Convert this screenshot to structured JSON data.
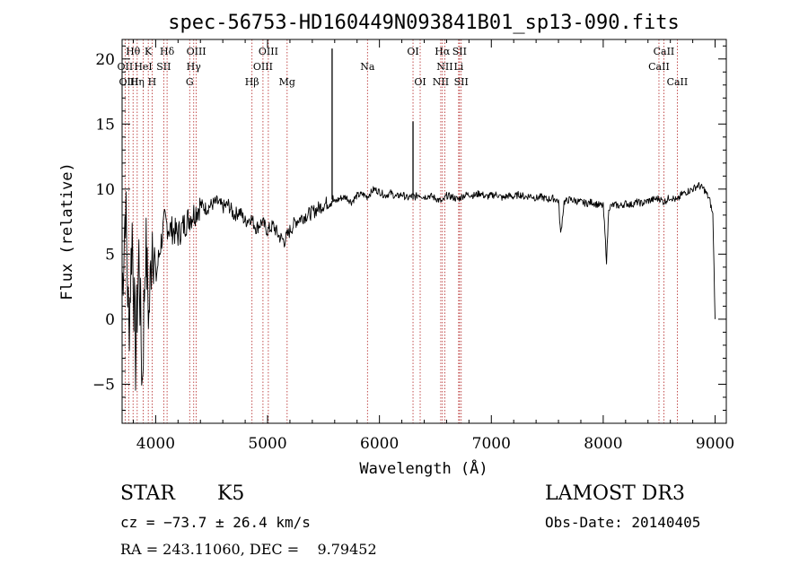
{
  "colors": {
    "spectrum": "#000000",
    "line_marker": "#b22222",
    "axis": "#000000",
    "background": "#ffffff"
  },
  "chart_data": {
    "type": "line",
    "title": "spec-56753-HD160449N093841B01_sp13-090.fits",
    "xlabel": "Wavelength (Å)",
    "ylabel": "Flux (relative)",
    "xlim": [
      3700,
      9100
    ],
    "ylim": [
      -8,
      21.5
    ],
    "xticks": [
      4000,
      5000,
      6000,
      7000,
      8000,
      9000
    ],
    "yticks": [
      -5,
      0,
      5,
      10,
      15,
      20
    ],
    "series": [
      {
        "name": "flux",
        "x": [
          3700,
          3730,
          3760,
          3790,
          3820,
          3850,
          3880,
          3910,
          3940,
          3970,
          4000,
          4040,
          4080,
          4120,
          4160,
          4200,
          4250,
          4300,
          4350,
          4400,
          4450,
          4500,
          4550,
          4600,
          4650,
          4700,
          4750,
          4800,
          4850,
          4900,
          4950,
          5000,
          5050,
          5100,
          5150,
          5200,
          5250,
          5300,
          5350,
          5400,
          5450,
          5500,
          5550,
          5580,
          5600,
          5650,
          5700,
          5750,
          5800,
          5850,
          5890,
          5950,
          6000,
          6050,
          6100,
          6150,
          6200,
          6250,
          6300,
          6320,
          6350,
          6400,
          6450,
          6500,
          6563,
          6600,
          6650,
          6700,
          6750,
          6800,
          6850,
          6900,
          6950,
          7000,
          7050,
          7100,
          7150,
          7200,
          7250,
          7300,
          7350,
          7400,
          7450,
          7500,
          7550,
          7600,
          7620,
          7650,
          7700,
          7750,
          7800,
          7850,
          7900,
          7950,
          8000,
          8030,
          8050,
          8100,
          8150,
          8200,
          8250,
          8300,
          8350,
          8400,
          8450,
          8500,
          8542,
          8600,
          8662,
          8700,
          8750,
          8800,
          8850,
          8900,
          8950,
          8980,
          9000
        ],
        "values": [
          2.0,
          9.0,
          -1.0,
          7.0,
          -3.0,
          5.0,
          -5.0,
          6.0,
          0.0,
          7.0,
          3.0,
          5.5,
          7.5,
          7.0,
          6.8,
          6.5,
          7.2,
          7.8,
          8.2,
          8.8,
          8.5,
          8.8,
          9.0,
          8.6,
          8.8,
          8.0,
          8.3,
          7.5,
          7.8,
          7.0,
          7.5,
          6.8,
          7.2,
          6.4,
          6.0,
          6.8,
          7.5,
          7.8,
          8.0,
          8.2,
          8.5,
          8.8,
          9.0,
          9.2,
          9.0,
          9.3,
          9.4,
          9.0,
          9.5,
          9.6,
          9.4,
          10.0,
          9.8,
          9.5,
          9.7,
          9.4,
          9.6,
          9.3,
          9.5,
          9.4,
          9.6,
          9.4,
          9.5,
          9.3,
          9.0,
          9.5,
          9.4,
          9.2,
          9.5,
          9.6,
          9.5,
          9.7,
          9.4,
          9.5,
          9.6,
          9.3,
          9.5,
          9.4,
          9.6,
          9.4,
          9.5,
          9.3,
          9.4,
          9.2,
          9.3,
          9.1,
          6.5,
          9.0,
          9.2,
          9.1,
          9.0,
          8.9,
          9.0,
          8.8,
          8.7,
          4.5,
          8.6,
          8.8,
          8.7,
          8.9,
          8.8,
          9.0,
          8.9,
          9.1,
          9.2,
          9.3,
          9.0,
          9.4,
          9.1,
          9.6,
          9.8,
          10.0,
          10.3,
          10.0,
          9.2,
          8.0,
          0.0
        ]
      }
    ],
    "spikes": [
      {
        "x": 5577,
        "value": 20.8
      },
      {
        "x": 6300,
        "value": 15.2
      }
    ],
    "lines": [
      {
        "label": "Hθ",
        "x": 3798,
        "row": 0
      },
      {
        "label": "K",
        "x": 3934,
        "row": 0
      },
      {
        "label": "Hδ",
        "x": 4102,
        "row": 0
      },
      {
        "label": "OIII",
        "x": 4363,
        "row": 0
      },
      {
        "label": "OIII",
        "x": 5007,
        "row": 0
      },
      {
        "label": "OI",
        "x": 6300,
        "row": 0
      },
      {
        "label": "Hα",
        "x": 6563,
        "row": 0
      },
      {
        "label": "SII",
        "x": 6716,
        "row": 0
      },
      {
        "label": "CaII",
        "x": 8542,
        "row": 0
      },
      {
        "label": "OII",
        "x": 3727,
        "row": 1
      },
      {
        "label": "HeI",
        "x": 3889,
        "row": 1
      },
      {
        "label": "SII",
        "x": 4072,
        "row": 1
      },
      {
        "label": "Hγ",
        "x": 4340,
        "row": 1
      },
      {
        "label": "OIII",
        "x": 4959,
        "row": 1
      },
      {
        "label": "Na",
        "x": 5893,
        "row": 1
      },
      {
        "label": "NII",
        "x": 6584,
        "row": 1
      },
      {
        "label": "Li",
        "x": 6708,
        "row": 1
      },
      {
        "label": "CaII",
        "x": 8498,
        "row": 1
      },
      {
        "label": "OIII",
        "x": 3760,
        "row": 2
      },
      {
        "label": "Hη",
        "x": 3835,
        "row": 2
      },
      {
        "label": "H",
        "x": 3968,
        "row": 2
      },
      {
        "label": "G",
        "x": 4304,
        "row": 2
      },
      {
        "label": "Hβ",
        "x": 4861,
        "row": 2
      },
      {
        "label": "Mg",
        "x": 5175,
        "row": 2
      },
      {
        "label": "OI",
        "x": 6364,
        "row": 2
      },
      {
        "label": "NII",
        "x": 6548,
        "row": 2
      },
      {
        "label": "SII",
        "x": 6731,
        "row": 2
      },
      {
        "label": "CaII",
        "x": 8662,
        "row": 2
      }
    ]
  },
  "info": {
    "class": "STAR",
    "subclass": "K5",
    "survey": "LAMOST DR3",
    "cz": "cz = −73.7 ± 26.4 km/s",
    "obs_date": "Obs-Date: 20140405",
    "radec": "RA = 243.11060, DEC =    9.79452"
  }
}
